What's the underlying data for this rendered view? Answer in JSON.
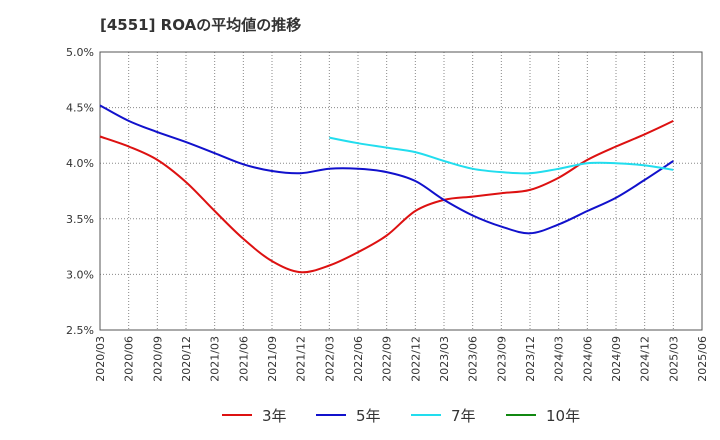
{
  "chart_data": {
    "type": "line",
    "title": "[4551]  ROAの平均値の推移",
    "xlabel": "",
    "ylabel": "",
    "x": [
      "2020/03",
      "2020/06",
      "2020/09",
      "2020/12",
      "2021/03",
      "2021/06",
      "2021/09",
      "2021/12",
      "2022/03",
      "2022/06",
      "2022/09",
      "2022/12",
      "2023/03",
      "2023/06",
      "2023/09",
      "2023/12",
      "2024/03",
      "2024/06",
      "2024/09",
      "2024/12",
      "2025/03",
      "2025/06"
    ],
    "ylim": [
      2.5,
      5.0
    ],
    "yticks": [
      2.5,
      3.0,
      3.5,
      4.0,
      4.5,
      5.0
    ],
    "ytick_labels": [
      "2.5%",
      "3.0%",
      "3.5%",
      "4.0%",
      "4.5%",
      "5.0%"
    ],
    "grid": true,
    "legend_position": "bottom",
    "series": [
      {
        "name": "3年",
        "color": "#dd1111",
        "values": [
          4.24,
          4.15,
          4.03,
          3.83,
          3.57,
          3.32,
          3.12,
          3.02,
          3.08,
          3.2,
          3.35,
          3.57,
          3.67,
          3.7,
          3.73,
          3.76,
          3.87,
          4.03,
          4.15,
          4.26,
          4.38,
          null
        ]
      },
      {
        "name": "5年",
        "color": "#1111cc",
        "values": [
          4.52,
          4.38,
          4.28,
          4.19,
          4.09,
          3.99,
          3.93,
          3.91,
          3.95,
          3.95,
          3.92,
          3.84,
          3.67,
          3.53,
          3.43,
          3.37,
          3.45,
          3.57,
          3.69,
          3.85,
          4.02,
          null
        ]
      },
      {
        "name": "7年",
        "color": "#22ddee",
        "values": [
          null,
          null,
          null,
          null,
          null,
          null,
          null,
          null,
          4.23,
          4.18,
          4.14,
          4.1,
          4.02,
          3.95,
          3.92,
          3.91,
          3.95,
          4.0,
          4.0,
          3.98,
          3.94,
          null
        ]
      },
      {
        "name": "10年",
        "color": "#118811",
        "values": [
          null,
          null,
          null,
          null,
          null,
          null,
          null,
          null,
          null,
          null,
          null,
          null,
          null,
          null,
          null,
          null,
          null,
          null,
          null,
          null,
          null,
          null
        ]
      }
    ]
  }
}
